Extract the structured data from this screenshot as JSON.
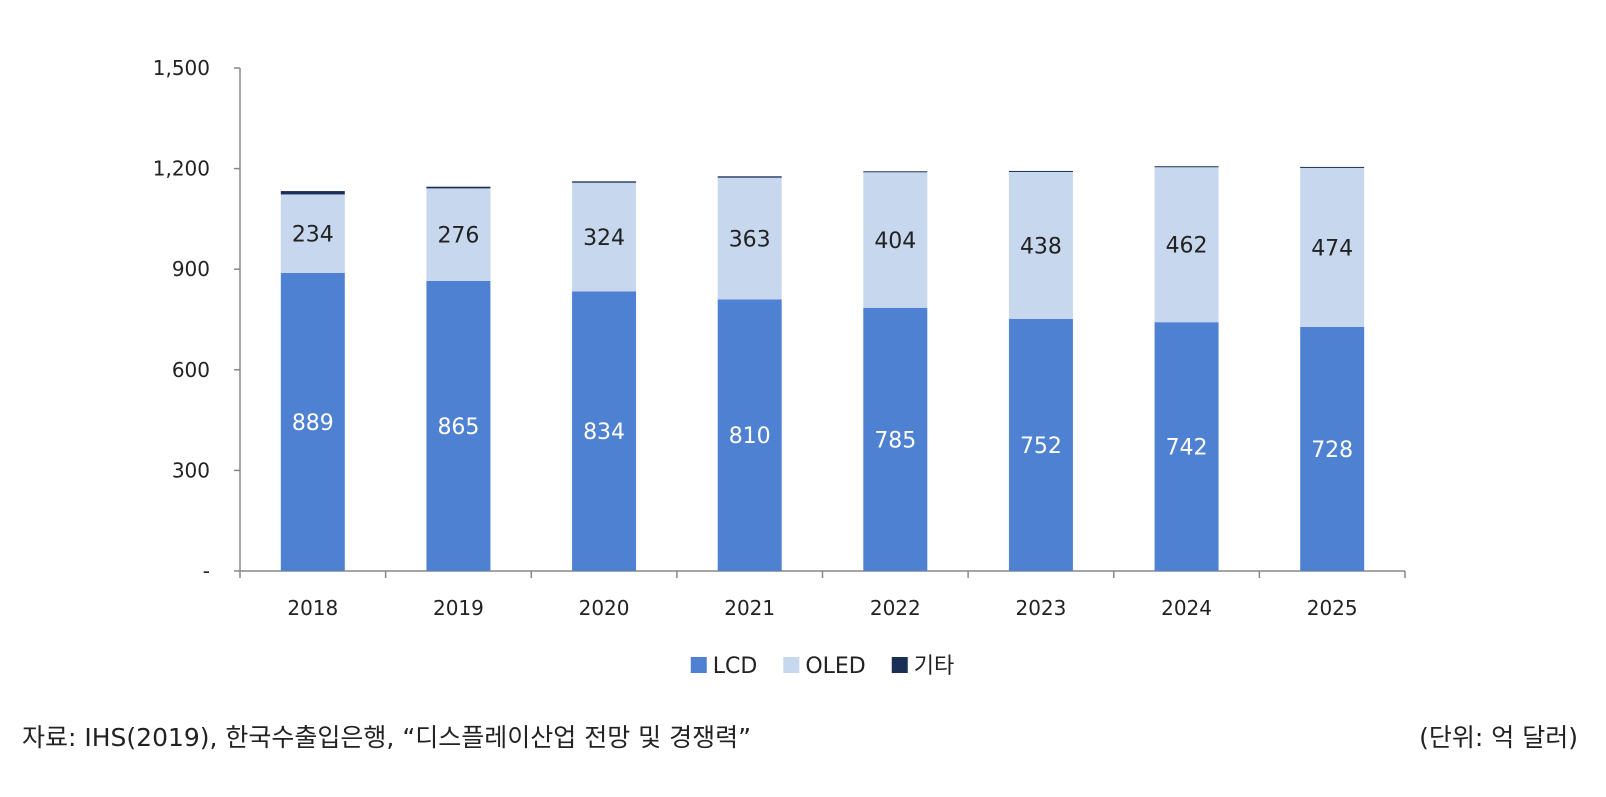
{
  "chart_data": {
    "type": "bar",
    "stacked": true,
    "categories": [
      "2018",
      "2019",
      "2020",
      "2021",
      "2022",
      "2023",
      "2024",
      "2025"
    ],
    "series": [
      {
        "name": "LCD",
        "values": [
          889,
          865,
          834,
          810,
          785,
          752,
          742,
          728
        ],
        "color": "#4f81d3"
      },
      {
        "name": "OLED",
        "values": [
          234,
          276,
          324,
          363,
          404,
          438,
          462,
          474
        ],
        "color": "#c6d7ee"
      },
      {
        "name": "기타",
        "values": [
          10,
          5,
          4,
          4,
          3,
          3,
          3,
          3
        ],
        "color": "#1a2f55"
      }
    ],
    "data_labels": {
      "LCD": [
        "889",
        "865",
        "834",
        "810",
        "785",
        "752",
        "742",
        "728"
      ],
      "OLED": [
        "234",
        "276",
        "324",
        "363",
        "404",
        "438",
        "462",
        "474"
      ]
    },
    "ylim": [
      0,
      1500
    ],
    "yticks": [
      0,
      300,
      600,
      900,
      1200,
      1500
    ],
    "ytick_labels": [
      "-",
      "300",
      "600",
      "900",
      "1,200",
      "1,500"
    ],
    "legend_position": "bottom",
    "grid": false
  },
  "footer": {
    "source": "자료: IHS(2019), 한국수출입은행, “디스플레이산업 전망 및 경쟁력”",
    "unit": "(단위: 억 달러)"
  }
}
